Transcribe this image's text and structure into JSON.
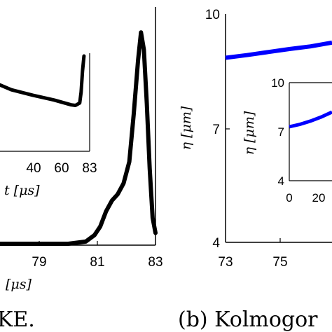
{
  "chart_data": [
    {
      "panel": "a",
      "type": "line",
      "caption": "KE.",
      "xlabel": "[μs]",
      "xticks": [
        "79",
        "81",
        "83"
      ],
      "xlim": [
        77.0,
        83.0
      ],
      "color": "#000000",
      "series": [
        {
          "x": [
            77.0,
            78.0,
            79.0,
            80.0,
            80.6,
            80.9,
            81.1,
            81.3,
            81.5,
            81.7,
            81.9,
            82.1,
            82.25,
            82.4,
            82.5,
            82.6,
            82.7,
            82.8,
            82.9,
            83.0
          ],
          "y": [
            0.0,
            0.0,
            0.0,
            0.0,
            0.01,
            0.04,
            0.08,
            0.15,
            0.2,
            0.23,
            0.28,
            0.38,
            0.6,
            0.85,
            0.98,
            0.9,
            0.65,
            0.35,
            0.12,
            0.05
          ]
        }
      ],
      "inset": {
        "xlabel": "t  [μs]",
        "xticks": [
          "40",
          "60",
          "83"
        ],
        "series": [
          {
            "x": [
              17,
              25,
              40,
              55,
              67,
              70,
              73,
              74,
              75,
              76
            ],
            "y": [
              0.52,
              0.44,
              0.35,
              0.27,
              0.19,
              0.18,
              0.22,
              0.4,
              0.75,
              1.0
            ]
          }
        ]
      }
    },
    {
      "panel": "b",
      "type": "line",
      "caption": "(b)  Kolmogor",
      "ylabel": "η  [μm]",
      "xticks": [
        "73",
        "75"
      ],
      "yticks": [
        "10",
        "7",
        "4"
      ],
      "xlim": [
        73,
        83
      ],
      "ylim": [
        4,
        10
      ],
      "color": "#0000ff",
      "series": [
        {
          "x": [
            73,
            74,
            75,
            76,
            77,
            78
          ],
          "y": [
            8.85,
            8.92,
            9.0,
            9.08,
            9.15,
            9.25
          ]
        }
      ],
      "inset": {
        "ylabel": "η  [μm]",
        "yticks": [
          "10",
          "7",
          "4"
        ],
        "xticks": [
          "0",
          "20"
        ],
        "xlim": [
          0,
          60
        ],
        "ylim": [
          4,
          10
        ],
        "series": [
          {
            "x": [
              0,
              10,
              20,
              30,
              40
            ],
            "y": [
              7.3,
              7.45,
              7.65,
              7.9,
              8.2
            ]
          }
        ]
      }
    }
  ]
}
